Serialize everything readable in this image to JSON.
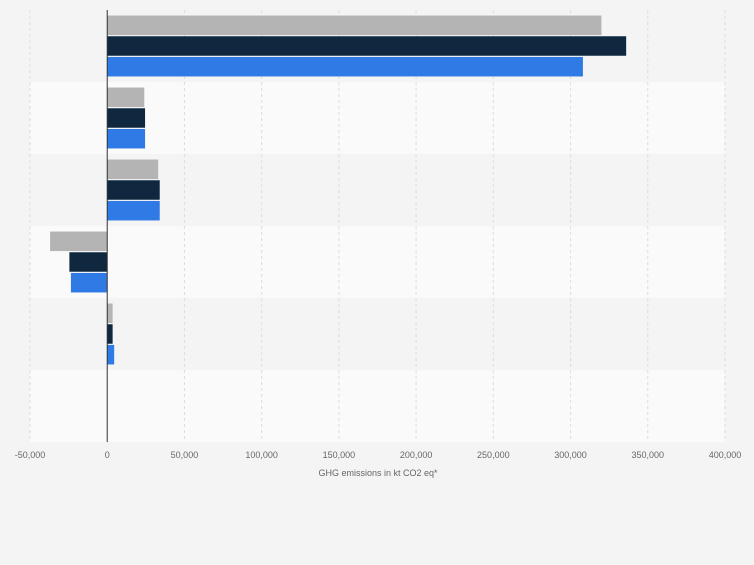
{
  "chart_data": {
    "type": "bar",
    "orientation": "horizontal",
    "categories": [
      "",
      "",
      "",
      "",
      "",
      ""
    ],
    "xlabel": "GHG emissions in kt CO2 eq*",
    "ylabel": "",
    "xlim": [
      -50000,
      400000
    ],
    "x_ticks": [
      -50000,
      0,
      50000,
      100000,
      150000,
      200000,
      250000,
      300000,
      350000,
      400000
    ],
    "x_tick_labels": [
      "-50,000",
      "0",
      "50,000",
      "100,000",
      "150,000",
      "200,000",
      "250,000",
      "300,000",
      "350,000",
      "400,000"
    ],
    "grid": true,
    "legend": "none",
    "series": [
      {
        "color": "#b4b4b4",
        "values": [
          320000,
          24000,
          33000,
          -37000,
          3500,
          0
        ]
      },
      {
        "color": "#0f2840",
        "values": [
          336000,
          24500,
          34000,
          -24500,
          3500,
          0
        ]
      },
      {
        "color": "#2f7ae5",
        "values": [
          308000,
          24500,
          34000,
          -23500,
          4500,
          0
        ]
      }
    ]
  }
}
